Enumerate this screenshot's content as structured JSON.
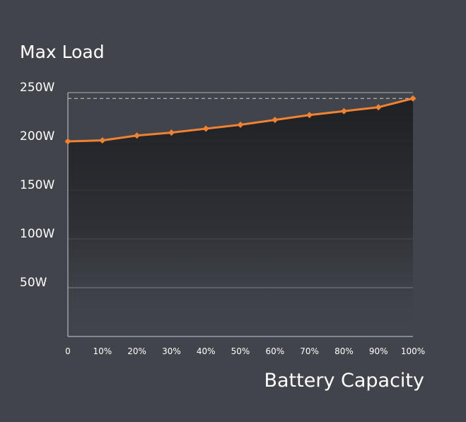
{
  "chart_data": {
    "type": "area",
    "title": "Max Load",
    "xlabel": "Battery Capacity",
    "ylabel": "",
    "categories": [
      "0",
      "10%",
      "20%",
      "30%",
      "40%",
      "50%",
      "60%",
      "70%",
      "80%",
      "90%",
      "100%"
    ],
    "y_tick_labels": [
      "250W",
      "200W",
      "150W",
      "100W",
      "50W"
    ],
    "y_tick_values": [
      250,
      200,
      150,
      100,
      50
    ],
    "ylim": [
      0,
      250
    ],
    "grid": true,
    "reference_line": 244,
    "series": [
      {
        "values": [
          200,
          201,
          206,
          209,
          213,
          217,
          222,
          227,
          231,
          235,
          244
        ]
      }
    ],
    "colors": {
      "background": "#41444b",
      "line": "#f08232",
      "grid": "#c9cbd0",
      "area_top": "#1f2024"
    }
  }
}
